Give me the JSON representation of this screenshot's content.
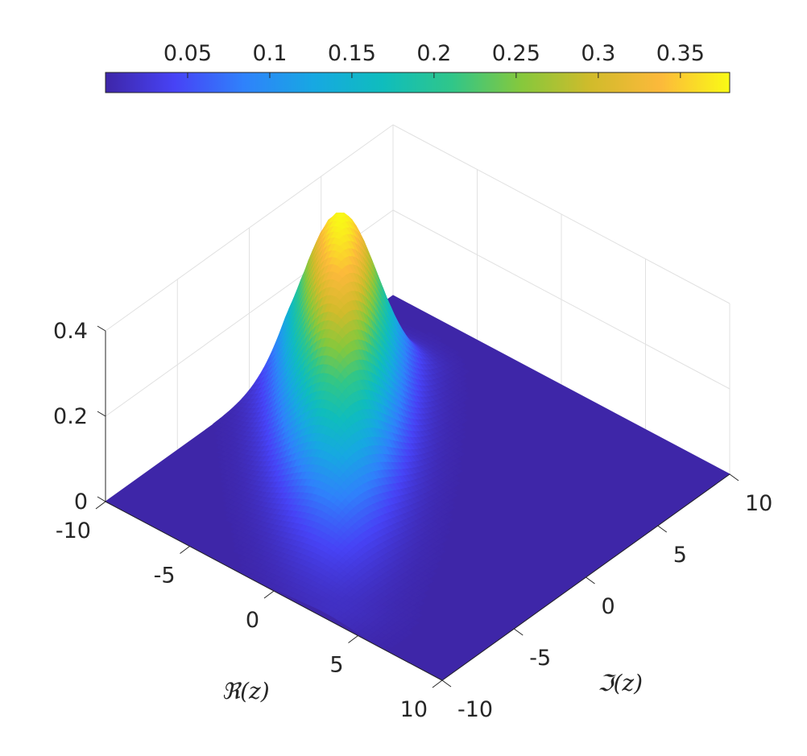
{
  "chart_data": {
    "type": "surface",
    "title": "",
    "xlabel": "ℜ(z)",
    "ylabel": "ℑ(z)",
    "zlabel": "",
    "xlim": [
      -10,
      10
    ],
    "ylim": [
      -10,
      10
    ],
    "zlim": [
      0,
      0.4
    ],
    "x_ticks": [
      -10,
      -5,
      0,
      5,
      10
    ],
    "x_tick_labels": [
      "-10",
      "-5",
      "0",
      "5",
      "10"
    ],
    "y_ticks": [
      -10,
      -5,
      0,
      5,
      10
    ],
    "y_tick_labels": [
      "-10",
      "-5",
      "0",
      "5",
      "10"
    ],
    "z_ticks": [
      0,
      0.2,
      0.4
    ],
    "z_tick_labels": [
      "0",
      "0.2",
      "0.4"
    ],
    "surface": {
      "description_free": true,
      "peak_value": 0.38,
      "peak_location": {
        "re": -8,
        "im": 4
      },
      "ridge_direction": {
        "re": 1,
        "im": -1
      },
      "ridge_extent": {
        "from": {
          "re": -8,
          "im": 4
        },
        "to": {
          "re": 3,
          "im": -9
        }
      },
      "ridge_half_width": 1.7
    },
    "colorbar": {
      "location": "top",
      "range": [
        0,
        0.38
      ],
      "ticks": [
        0.05,
        0.1,
        0.15,
        0.2,
        0.25,
        0.3,
        0.35
      ],
      "tick_labels": [
        "0.05",
        "0.1",
        "0.15",
        "0.2",
        "0.25",
        "0.3",
        "0.35"
      ],
      "colormap": "parula"
    },
    "grid": true
  },
  "colors": {
    "parula": [
      "#3e26a8",
      "#4743f6",
      "#2f82fb",
      "#17a8e2",
      "#0fbdbd",
      "#30c689",
      "#86c83c",
      "#d1bb2b",
      "#fcb93b",
      "#f9fb15"
    ],
    "axis": "#262626",
    "grid": "#e1e1e1"
  }
}
